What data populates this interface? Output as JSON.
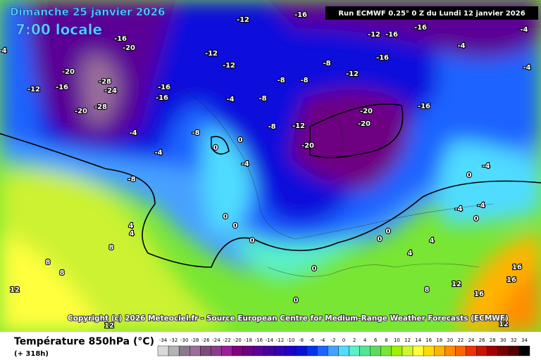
{
  "header": {
    "date": "Dimanche 25 janvier 2026",
    "time": "7:00 locale",
    "run": "Run ECMWF 0.25° 0 Z du Lundi 12 janvier 2026"
  },
  "map": {
    "copyright": "Copyright (c) 2026 Meteociel.fr - Source European Centre for Medium-Range Weather Forecasts (ECMWF)",
    "contour_labels": [
      -16,
      -12,
      -16,
      -20,
      -20,
      -12,
      -16,
      -28,
      -24,
      -28,
      -20,
      -16,
      -16,
      -12,
      -12,
      -8,
      -8,
      -8,
      -12,
      -16,
      -12,
      -16,
      -16,
      -16,
      -20,
      -20,
      -12,
      -20,
      -8,
      -8,
      -4,
      -8,
      -4,
      -4,
      -8,
      0,
      0,
      -4,
      0,
      0,
      0,
      4,
      4,
      8,
      8,
      8,
      12,
      12,
      0,
      0,
      0,
      0,
      4,
      4,
      8,
      12,
      16,
      16,
      16,
      12,
      -4,
      0,
      -4,
      -4,
      0,
      -4,
      -4,
      -4,
      -4
    ]
  },
  "footer": {
    "variable": "Température 850hPa (°C)",
    "lead": "(+ 318h)"
  },
  "legend": {
    "ticks": [
      -34,
      -32,
      -30,
      -28,
      -26,
      -24,
      -22,
      -20,
      -18,
      -16,
      -14,
      -12,
      -10,
      -8,
      -6,
      -4,
      -2,
      0,
      2,
      4,
      6,
      8,
      10,
      12,
      14,
      16,
      18,
      20,
      22,
      24,
      26,
      28,
      30,
      32,
      34
    ],
    "colors": [
      "#d9d9d9",
      "#b4b4b4",
      "#8c7a8c",
      "#9a6f9a",
      "#7d4b7d",
      "#8c3c8c",
      "#9b1e9b",
      "#820082",
      "#6e0082",
      "#5a0096",
      "#4600a0",
      "#3200b4",
      "#1e00c8",
      "#0a10dc",
      "#0032f0",
      "#1e64ff",
      "#46a0ff",
      "#50dcff",
      "#5af0c8",
      "#50e696",
      "#5adc5a",
      "#78e632",
      "#a0f000",
      "#d2f532",
      "#ffff3c",
      "#ffdc00",
      "#ffb400",
      "#ff8c00",
      "#ff6400",
      "#f03200",
      "#c81400",
      "#a00000",
      "#780000",
      "#500000",
      "#000000"
    ]
  }
}
